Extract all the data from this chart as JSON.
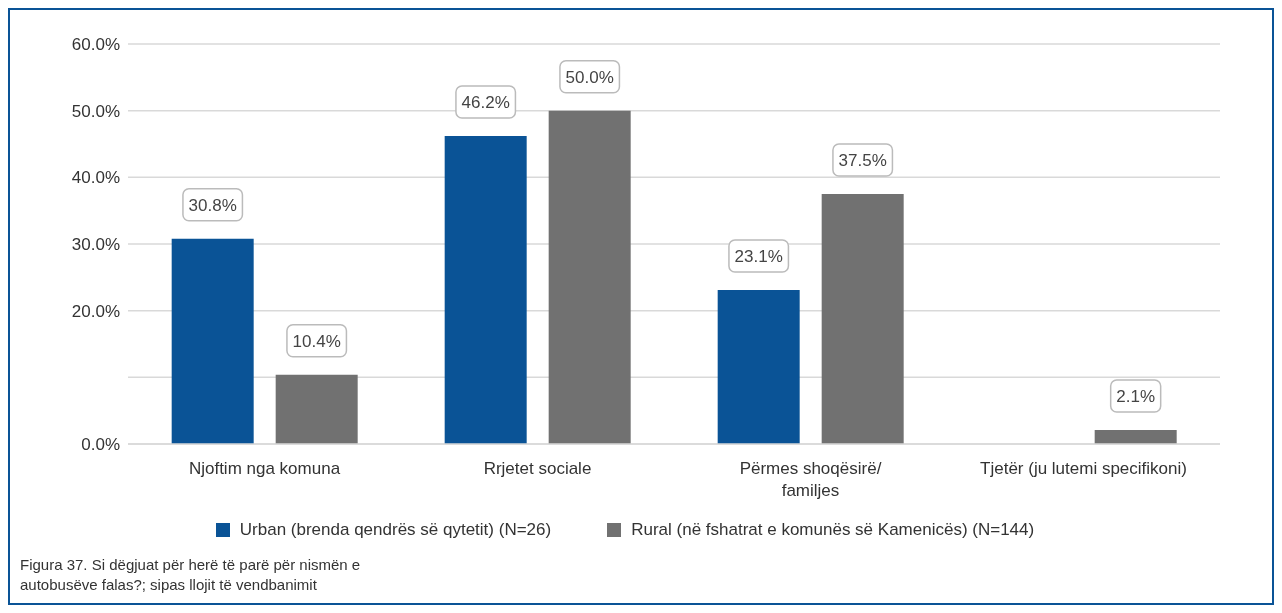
{
  "chart_data": {
    "type": "bar",
    "categories": [
      "Njoftim nga komuna",
      "Rrjetet sociale",
      "Përmes shoqësirë/ familjes",
      "Tjetër (ju lutemi specifikoni)"
    ],
    "series": [
      {
        "name": "Urban (brenda qendrës së qytetit) (N=26)",
        "color": "#0a5396",
        "values": [
          30.8,
          46.2,
          23.1,
          null
        ],
        "value_labels": [
          "30.8%",
          "46.2%",
          "23.1%",
          null
        ]
      },
      {
        "name": "Rural (në fshatrat e komunës së Kamenicës) (N=144)",
        "color": "#717171",
        "values": [
          10.4,
          50.0,
          37.5,
          2.1
        ],
        "value_labels": [
          "10.4%",
          "50.0%",
          "37.5%",
          "2.1%"
        ]
      }
    ],
    "ylim": [
      0,
      60
    ],
    "yticks": [
      {
        "value": 0,
        "label": "0.0%"
      },
      {
        "value": 10,
        "label": null
      },
      {
        "value": 20,
        "label": "20.0%"
      },
      {
        "value": 30,
        "label": "30.0%"
      },
      {
        "value": 40,
        "label": "40.0%"
      },
      {
        "value": 50,
        "label": "50.0%"
      },
      {
        "value": 60,
        "label": "60.0%"
      }
    ],
    "grid": "y",
    "legend": "bottom",
    "annotations": [
      "Figura 37. Si dëgjuat për herë të parë për nismën e autobusëve falas?; sipas llojit të vendbanimit"
    ]
  }
}
